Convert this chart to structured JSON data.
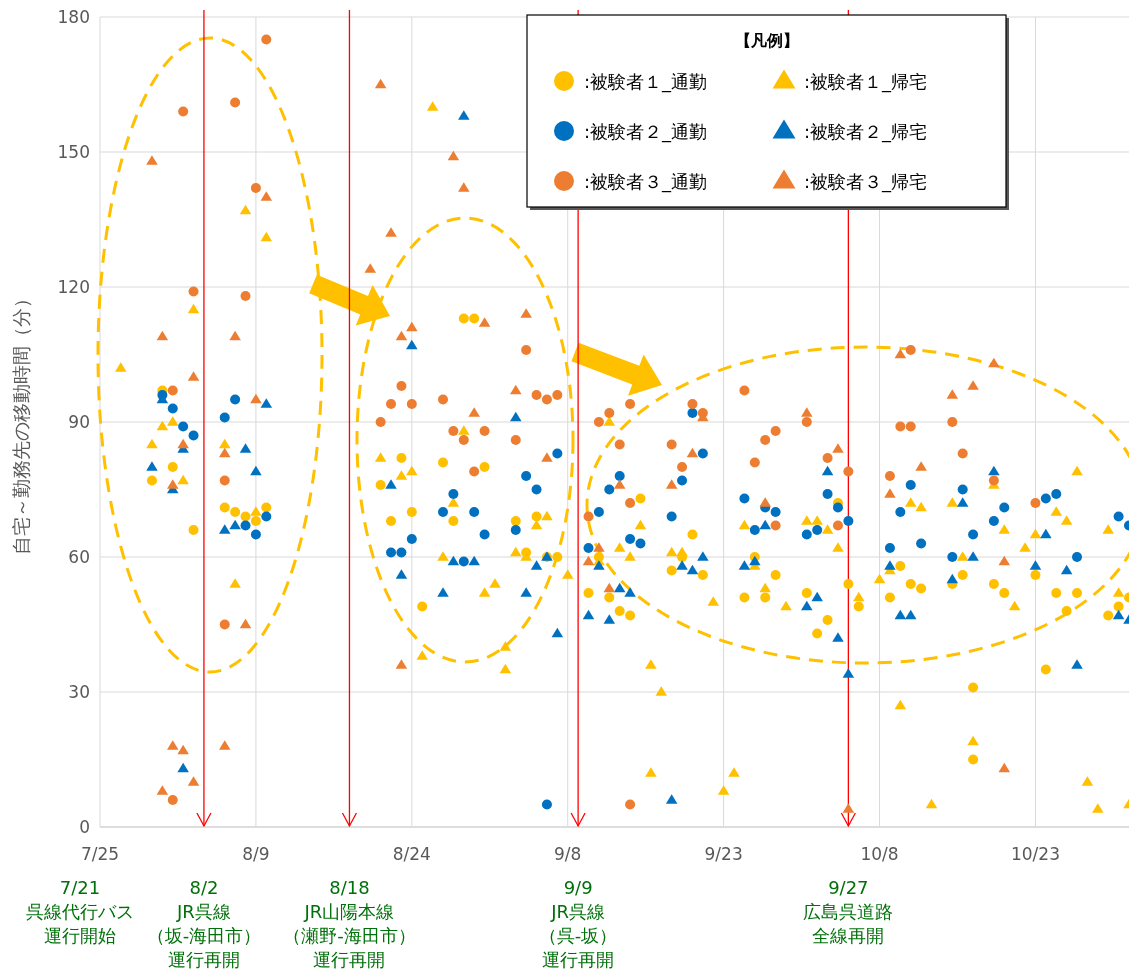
{
  "chart_data": {
    "type": "scatter",
    "ylabel": "自宅～勤務先の移動時間（分）",
    "legend_title": "【凡例】",
    "legend": "top right",
    "grid": true,
    "xlim": [
      "--07-25",
      "--11-01"
    ],
    "ylim": [
      0,
      180
    ],
    "yticks": [
      0,
      30,
      60,
      90,
      120,
      150,
      180
    ],
    "xticks": [
      {
        "value": "--07-25",
        "label": "7/25"
      },
      {
        "value": "--08-09",
        "label": "8/9"
      },
      {
        "value": "--08-24",
        "label": "8/24"
      },
      {
        "value": "--09-08",
        "label": "9/8"
      },
      {
        "value": "--09-23",
        "label": "9/23"
      },
      {
        "value": "--10-08",
        "label": "10/8"
      },
      {
        "value": "--10-23",
        "label": "10/23"
      }
    ],
    "ref_lines": [
      {
        "axis": "x",
        "value": "--08-04",
        "color": "#ff0000"
      },
      {
        "axis": "x",
        "value": "--08-18",
        "color": "#ff0000"
      },
      {
        "axis": "x",
        "value": "--09-09",
        "color": "#ff0000"
      },
      {
        "axis": "x",
        "value": "--10-05",
        "color": "#ff0000"
      }
    ],
    "annotations": [
      "7/21",
      "呉線代行バス",
      "運行開始",
      "8/2",
      "JR呉線",
      "（坂-海田市）",
      "運行再開",
      "8/18",
      "JR山陽本線",
      "（瀬野-海田市）",
      "運行再開",
      "9/9",
      "JR呉線",
      "（呉-坂）",
      "運行再開",
      "9/27",
      "広島呉道路",
      "全線再開"
    ],
    "series": [
      {
        "name": ":被験者１_通勤",
        "color": "#ffc000",
        "marker": "circle",
        "x": [
          "--07-30",
          "--07-31",
          "--08-01",
          "--08-03",
          "--08-06",
          "--08-07",
          "--08-08",
          "--08-09",
          "--08-10",
          "--08-21",
          "--08-22",
          "--08-23",
          "--08-24",
          "--08-25",
          "--08-27",
          "--08-28",
          "--08-29",
          "--08-30",
          "--08-31",
          "--09-03",
          "--09-04",
          "--09-05",
          "--09-06",
          "--09-07",
          "--09-10",
          "--09-11",
          "--09-12",
          "--09-13",
          "--09-14",
          "--09-15",
          "--09-18",
          "--09-19",
          "--09-20",
          "--09-21",
          "--09-25",
          "--09-26",
          "--09-27",
          "--09-28",
          "--10-01",
          "--10-02",
          "--10-03",
          "--10-04",
          "--10-05",
          "--10-06",
          "--10-09",
          "--10-10",
          "--10-11",
          "--10-12",
          "--10-15",
          "--10-16",
          "--10-17",
          "--10-17",
          "--10-19",
          "--10-20",
          "--10-23",
          "--10-24",
          "--10-25",
          "--10-26",
          "--10-27",
          "--10-30",
          "--10-31",
          "--11-01"
        ],
        "values": [
          77,
          97,
          80,
          66,
          71,
          70,
          69,
          68,
          71,
          76,
          68,
          82,
          70,
          49,
          81,
          68,
          113,
          113,
          80,
          68,
          61,
          69,
          60,
          60,
          52,
          60,
          51,
          48,
          47,
          73,
          57,
          60,
          65,
          56,
          51,
          60,
          51,
          56,
          52,
          43,
          46,
          72,
          54,
          49,
          51,
          58,
          54,
          53,
          54,
          56,
          31,
          15,
          54,
          52,
          56,
          35,
          52,
          48,
          52,
          47,
          49,
          51
        ]
      },
      {
        "name": ":被験者１_帰宅",
        "color": "#ffc000",
        "marker": "triangle",
        "x": [
          "--07-27",
          "--07-30",
          "--07-31",
          "--08-01",
          "--08-02",
          "--08-03",
          "--08-06",
          "--08-07",
          "--08-08",
          "--08-09",
          "--08-10",
          "--08-21",
          "--08-23",
          "--08-24",
          "--08-25",
          "--08-26",
          "--08-27",
          "--08-28",
          "--08-29",
          "--08-31",
          "--09-01",
          "--09-02",
          "--09-02",
          "--09-03",
          "--09-04",
          "--09-05",
          "--09-06",
          "--09-08",
          "--09-11",
          "--09-12",
          "--09-13",
          "--09-14",
          "--09-15",
          "--09-16",
          "--09-16",
          "--09-17",
          "--09-18",
          "--09-19",
          "--09-22",
          "--09-23",
          "--09-24",
          "--09-25",
          "--09-26",
          "--09-27",
          "--09-29",
          "--10-01",
          "--10-02",
          "--10-03",
          "--10-04",
          "--10-06",
          "--10-08",
          "--10-09",
          "--10-10",
          "--10-11",
          "--10-12",
          "--10-13",
          "--10-15",
          "--10-16",
          "--10-17",
          "--10-19",
          "--10-20",
          "--10-21",
          "--10-22",
          "--10-23",
          "--10-25",
          "--10-26",
          "--10-27",
          "--10-28",
          "--10-29",
          "--10-30",
          "--10-31",
          "--11-01"
        ],
        "values": [
          102,
          85,
          89,
          90,
          77,
          115,
          85,
          54,
          137,
          70,
          131,
          82,
          78,
          79,
          38,
          160,
          60,
          72,
          88,
          52,
          54,
          40,
          35,
          61,
          60,
          67,
          69,
          56,
          59,
          90,
          62,
          60,
          67,
          36,
          12,
          30,
          61,
          61,
          50,
          8,
          12,
          67,
          58,
          53,
          49,
          68,
          68,
          66,
          62,
          51,
          55,
          57,
          27,
          72,
          71,
          5,
          72,
          60,
          19,
          76,
          66,
          49,
          62,
          65,
          70,
          68,
          79,
          10,
          4,
          66,
          52,
          5
        ]
      },
      {
        "name": ":被験者２_通勤",
        "color": "#0070c0",
        "marker": "circle",
        "x": [
          "--07-31",
          "--08-01",
          "--08-02",
          "--08-03",
          "--08-06",
          "--08-07",
          "--08-08",
          "--08-09",
          "--08-10",
          "--08-22",
          "--08-23",
          "--08-24",
          "--08-27",
          "--08-28",
          "--08-29",
          "--08-30",
          "--08-31",
          "--09-03",
          "--09-04",
          "--09-05",
          "--09-06",
          "--09-07",
          "--09-10",
          "--09-11",
          "--09-12",
          "--09-13",
          "--09-14",
          "--09-15",
          "--09-18",
          "--09-19",
          "--09-20",
          "--09-21",
          "--09-25",
          "--09-26",
          "--09-27",
          "--09-28",
          "--10-01",
          "--10-02",
          "--10-03",
          "--10-04",
          "--10-05",
          "--10-09",
          "--10-10",
          "--10-11",
          "--10-12",
          "--10-15",
          "--10-16",
          "--10-17",
          "--10-19",
          "--10-20",
          "--10-24",
          "--10-25",
          "--10-27",
          "--10-31",
          "--11-01"
        ],
        "values": [
          96,
          93,
          89,
          87,
          91,
          95,
          67,
          65,
          69,
          61,
          61,
          64,
          70,
          74,
          59,
          70,
          65,
          66,
          78,
          75,
          5,
          83,
          62,
          70,
          75,
          78,
          64,
          63,
          69,
          77,
          92,
          83,
          73,
          66,
          71,
          70,
          65,
          66,
          74,
          71,
          68,
          62,
          70,
          76,
          63,
          60,
          75,
          65,
          68,
          71,
          73,
          74,
          60,
          69,
          67
        ]
      },
      {
        "name": ":被験者２_帰宅",
        "color": "#0070c0",
        "marker": "triangle",
        "x": [
          "--07-30",
          "--07-31",
          "--08-01",
          "--08-02",
          "--08-02",
          "--08-06",
          "--08-07",
          "--08-08",
          "--08-09",
          "--08-10",
          "--08-22",
          "--08-23",
          "--08-24",
          "--08-27",
          "--08-28",
          "--08-29",
          "--08-30",
          "--09-03",
          "--09-04",
          "--09-05",
          "--09-06",
          "--09-07",
          "--09-10",
          "--09-11",
          "--09-12",
          "--09-13",
          "--09-14",
          "--09-18",
          "--09-19",
          "--09-20",
          "--09-21",
          "--09-25",
          "--09-26",
          "--09-27",
          "--10-01",
          "--10-02",
          "--10-03",
          "--10-04",
          "--10-05",
          "--10-09",
          "--10-10",
          "--10-11",
          "--10-15",
          "--10-16",
          "--10-17",
          "--10-19",
          "--10-23",
          "--10-24",
          "--10-26",
          "--10-27",
          "--10-31",
          "--11-01"
        ],
        "values": [
          80,
          95,
          75,
          84,
          13,
          66,
          67,
          84,
          79,
          94,
          76,
          56,
          107,
          52,
          59,
          158,
          59,
          91,
          52,
          58,
          60,
          43,
          47,
          58,
          46,
          53,
          52,
          6,
          58,
          57,
          60,
          58,
          59,
          67,
          49,
          51,
          79,
          42,
          34,
          58,
          47,
          47,
          55,
          72,
          60,
          79,
          58,
          65,
          57,
          36,
          47,
          46
        ]
      },
      {
        "name": ":被験者３_通勤",
        "color": "#ed7d31",
        "marker": "circle",
        "x": [
          "--08-01",
          "--08-01",
          "--08-02",
          "--08-03",
          "--08-06",
          "--08-06",
          "--08-07",
          "--08-08",
          "--08-09",
          "--08-10",
          "--08-21",
          "--08-22",
          "--08-23",
          "--08-24",
          "--08-27",
          "--08-28",
          "--08-29",
          "--08-30",
          "--08-31",
          "--09-03",
          "--09-04",
          "--09-05",
          "--09-06",
          "--09-07",
          "--09-10",
          "--09-11",
          "--09-12",
          "--09-13",
          "--09-14",
          "--09-14",
          "--09-14",
          "--09-18",
          "--09-19",
          "--09-20",
          "--09-21",
          "--09-25",
          "--09-26",
          "--09-27",
          "--09-28",
          "--09-28",
          "--10-01",
          "--10-03",
          "--10-04",
          "--10-05",
          "--10-09",
          "--10-10",
          "--10-11",
          "--10-11",
          "--10-15",
          "--10-16",
          "--10-19",
          "--10-23"
        ],
        "values": [
          97,
          6,
          159,
          119,
          77,
          45,
          161,
          118,
          142,
          175,
          90,
          94,
          98,
          94,
          95,
          88,
          86,
          79,
          88,
          86,
          106,
          96,
          95,
          96,
          69,
          90,
          92,
          85,
          94,
          72,
          5,
          85,
          80,
          94,
          92,
          97,
          81,
          86,
          88,
          67,
          90,
          82,
          67,
          79,
          78,
          89,
          89,
          106,
          90,
          83,
          77,
          72
        ]
      },
      {
        "name": ":被験者３_帰宅",
        "color": "#ed7d31",
        "marker": "triangle",
        "x": [
          "--07-30",
          "--07-31",
          "--07-31",
          "--08-01",
          "--08-01",
          "--08-02",
          "--08-02",
          "--08-03",
          "--08-03",
          "--08-06",
          "--08-06",
          "--08-07",
          "--08-08",
          "--08-09",
          "--08-10",
          "--08-20",
          "--08-21",
          "--08-22",
          "--08-23",
          "--08-23",
          "--08-24",
          "--08-28",
          "--08-29",
          "--08-30",
          "--08-31",
          "--09-03",
          "--09-04",
          "--09-06",
          "--09-10",
          "--09-11",
          "--09-12",
          "--09-13",
          "--09-18",
          "--09-20",
          "--09-21",
          "--09-27",
          "--10-01",
          "--10-04",
          "--10-05",
          "--10-09",
          "--10-10",
          "--10-12",
          "--10-15",
          "--10-17",
          "--10-19",
          "--10-20",
          "--10-20"
        ],
        "values": [
          148,
          109,
          8,
          76,
          18,
          85,
          17,
          100,
          10,
          83,
          18,
          109,
          45,
          95,
          140,
          124,
          165,
          132,
          109,
          36,
          111,
          149,
          142,
          92,
          112,
          97,
          114,
          82,
          59,
          62,
          53,
          76,
          76,
          83,
          91,
          72,
          92,
          84,
          4,
          74,
          105,
          80,
          96,
          98,
          103,
          59,
          13
        ]
      }
    ]
  }
}
